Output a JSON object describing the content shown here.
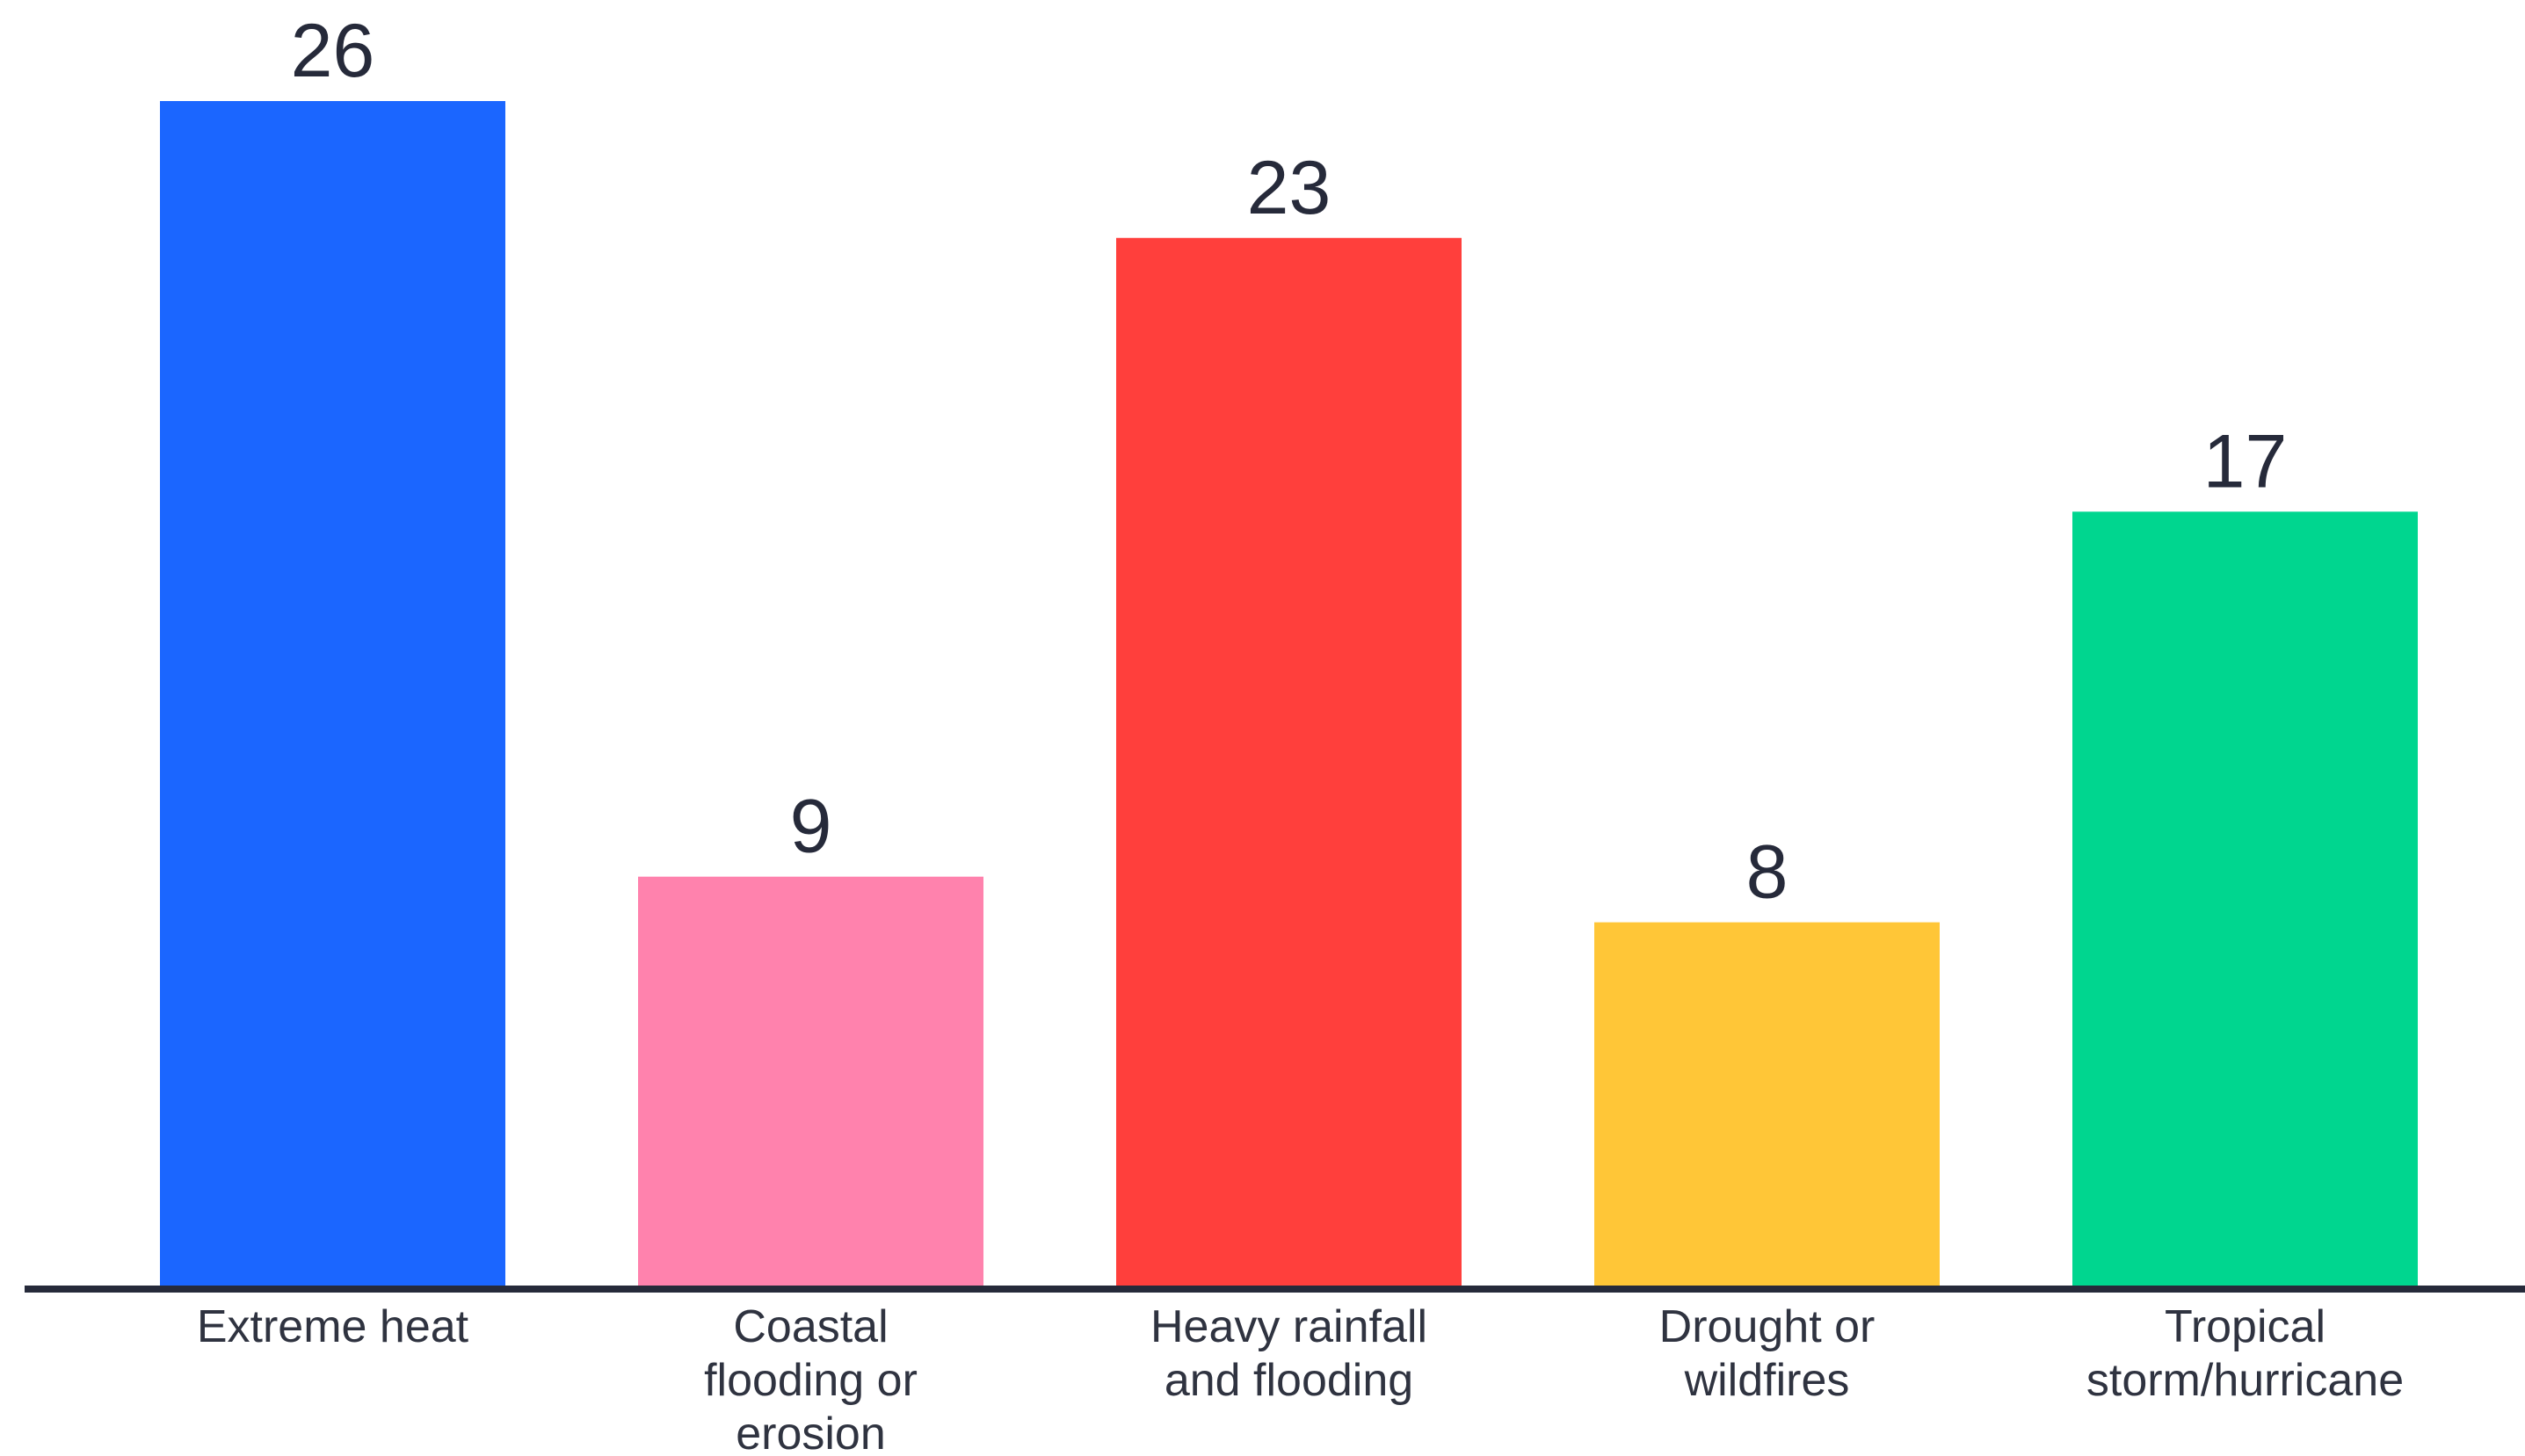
{
  "chart_data": {
    "type": "bar",
    "categories": [
      [
        "Extreme heat"
      ],
      [
        "Coastal",
        "flooding or",
        "erosion"
      ],
      [
        "Heavy rainfall",
        "and flooding"
      ],
      [
        "Drought or",
        "wildfires"
      ],
      [
        "Tropical",
        "storm/hurricane"
      ]
    ],
    "values": [
      26,
      9,
      23,
      8,
      17
    ],
    "value_labels": [
      "26",
      "9",
      "23",
      "8",
      "17"
    ],
    "colors": [
      "#1b66ff",
      "#ff82ad",
      "#ff3f3c",
      "#ffc637",
      "#00d68f"
    ],
    "axis_color": "#262a3a",
    "ylim": [
      0,
      26
    ],
    "title": "",
    "xlabel": "",
    "ylabel": "",
    "grid": false,
    "legend": "none"
  }
}
